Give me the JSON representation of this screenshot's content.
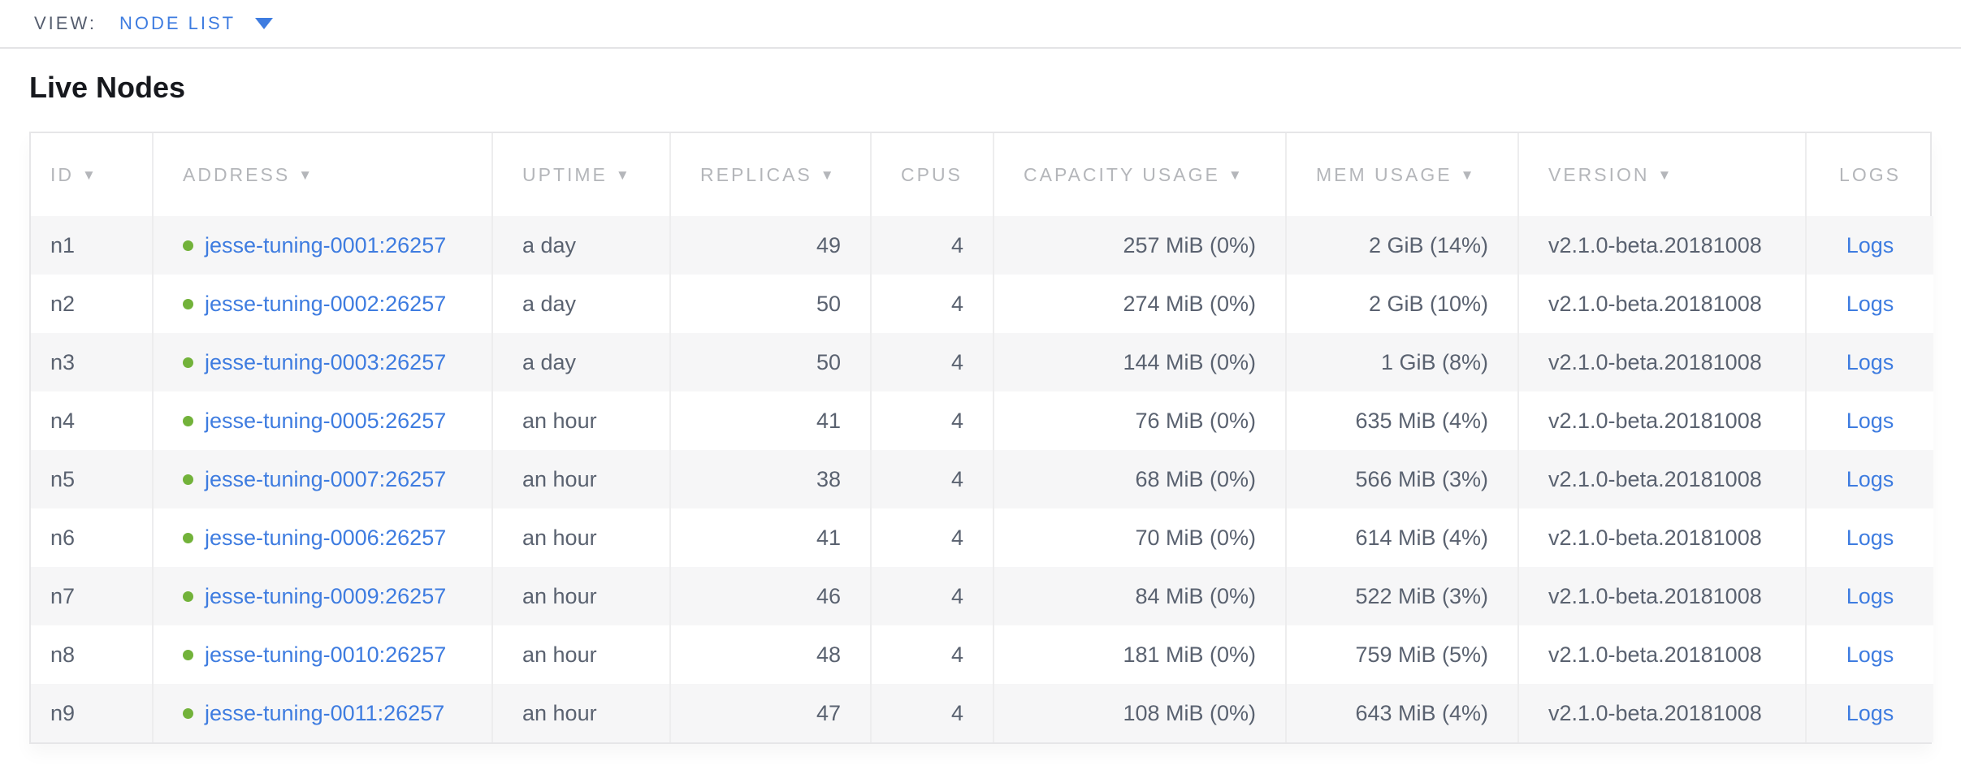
{
  "view_bar": {
    "label": "VIEW:",
    "selected_view": "NODE LIST"
  },
  "page": {
    "title": "Live Nodes"
  },
  "colors": {
    "link_blue": "#3e7ce0",
    "live_status_green": "#72b23a",
    "header_gray": "#b4b6ba",
    "cell_text": "#5a6270",
    "row_alt_bg": "#f6f6f7"
  },
  "table": {
    "sort_icon": "▼",
    "columns": [
      {
        "key": "id",
        "label": "ID",
        "sortable": true,
        "align": "left"
      },
      {
        "key": "address",
        "label": "ADDRESS",
        "sortable": true,
        "align": "left"
      },
      {
        "key": "uptime",
        "label": "UPTIME",
        "sortable": true,
        "align": "left"
      },
      {
        "key": "replicas",
        "label": "REPLICAS",
        "sortable": true,
        "align": "right"
      },
      {
        "key": "cpus",
        "label": "CPUS",
        "sortable": false,
        "align": "right"
      },
      {
        "key": "capacity",
        "label": "CAPACITY USAGE",
        "sortable": true,
        "align": "right"
      },
      {
        "key": "mem",
        "label": "MEM USAGE",
        "sortable": true,
        "align": "right"
      },
      {
        "key": "version",
        "label": "VERSION",
        "sortable": true,
        "align": "left"
      },
      {
        "key": "logs",
        "label": "LOGS",
        "sortable": false,
        "align": "center"
      }
    ],
    "rows": [
      {
        "id": "n1",
        "status": "live",
        "address": "jesse-tuning-0001:26257",
        "uptime": "a day",
        "replicas": "49",
        "cpus": "4",
        "capacity": "257 MiB (0%)",
        "mem": "2 GiB (14%)",
        "version": "v2.1.0-beta.20181008",
        "logs": "Logs"
      },
      {
        "id": "n2",
        "status": "live",
        "address": "jesse-tuning-0002:26257",
        "uptime": "a day",
        "replicas": "50",
        "cpus": "4",
        "capacity": "274 MiB (0%)",
        "mem": "2 GiB (10%)",
        "version": "v2.1.0-beta.20181008",
        "logs": "Logs"
      },
      {
        "id": "n3",
        "status": "live",
        "address": "jesse-tuning-0003:26257",
        "uptime": "a day",
        "replicas": "50",
        "cpus": "4",
        "capacity": "144 MiB (0%)",
        "mem": "1 GiB (8%)",
        "version": "v2.1.0-beta.20181008",
        "logs": "Logs"
      },
      {
        "id": "n4",
        "status": "live",
        "address": "jesse-tuning-0005:26257",
        "uptime": "an hour",
        "replicas": "41",
        "cpus": "4",
        "capacity": "76 MiB (0%)",
        "mem": "635 MiB (4%)",
        "version": "v2.1.0-beta.20181008",
        "logs": "Logs"
      },
      {
        "id": "n5",
        "status": "live",
        "address": "jesse-tuning-0007:26257",
        "uptime": "an hour",
        "replicas": "38",
        "cpus": "4",
        "capacity": "68 MiB (0%)",
        "mem": "566 MiB (3%)",
        "version": "v2.1.0-beta.20181008",
        "logs": "Logs"
      },
      {
        "id": "n6",
        "status": "live",
        "address": "jesse-tuning-0006:26257",
        "uptime": "an hour",
        "replicas": "41",
        "cpus": "4",
        "capacity": "70 MiB (0%)",
        "mem": "614 MiB (4%)",
        "version": "v2.1.0-beta.20181008",
        "logs": "Logs"
      },
      {
        "id": "n7",
        "status": "live",
        "address": "jesse-tuning-0009:26257",
        "uptime": "an hour",
        "replicas": "46",
        "cpus": "4",
        "capacity": "84 MiB (0%)",
        "mem": "522 MiB (3%)",
        "version": "v2.1.0-beta.20181008",
        "logs": "Logs"
      },
      {
        "id": "n8",
        "status": "live",
        "address": "jesse-tuning-0010:26257",
        "uptime": "an hour",
        "replicas": "48",
        "cpus": "4",
        "capacity": "181 MiB (0%)",
        "mem": "759 MiB (5%)",
        "version": "v2.1.0-beta.20181008",
        "logs": "Logs"
      },
      {
        "id": "n9",
        "status": "live",
        "address": "jesse-tuning-0011:26257",
        "uptime": "an hour",
        "replicas": "47",
        "cpus": "4",
        "capacity": "108 MiB (0%)",
        "mem": "643 MiB (4%)",
        "version": "v2.1.0-beta.20181008",
        "logs": "Logs"
      }
    ]
  }
}
